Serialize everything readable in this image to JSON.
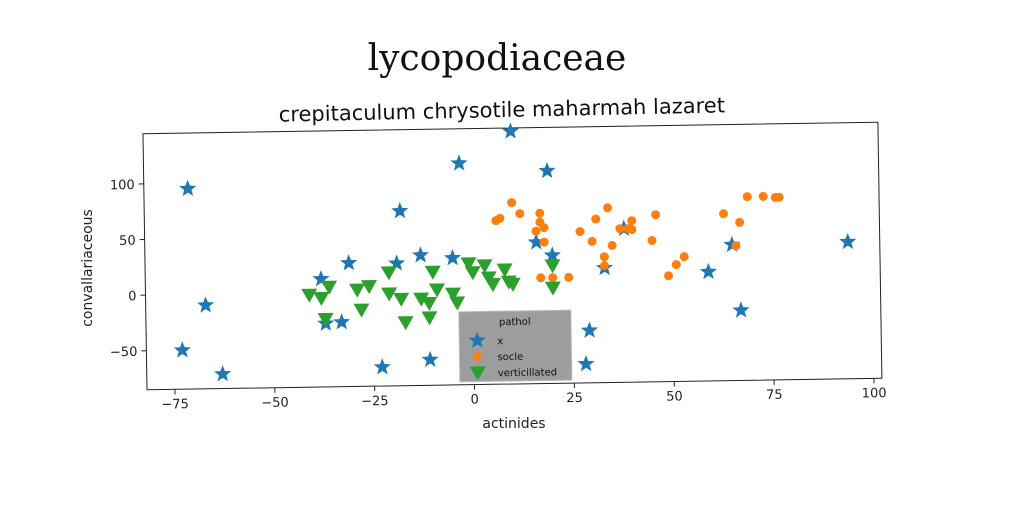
{
  "chart_data": {
    "type": "scatter",
    "title": "lycopodiaceae",
    "subtitle": "crepitaculum chrysotile maharmah lazaret",
    "xlabel": "actinides",
    "ylabel": "convallariaceous",
    "xlim": [
      -82,
      102
    ],
    "ylim": [
      -85,
      145
    ],
    "xticks": [
      -75,
      -50,
      -25,
      0,
      25,
      50,
      75,
      100
    ],
    "xtick_labels": [
      "−75",
      "−50",
      "−25",
      "0",
      "25",
      "50",
      "75",
      "100"
    ],
    "yticks": [
      -50,
      0,
      50,
      100
    ],
    "ytick_labels": [
      "−50",
      "0",
      "50",
      "100"
    ],
    "grid": false,
    "legend_position": "lower-center",
    "legend_title": "pathol",
    "series": [
      {
        "name": "x",
        "marker": "star",
        "color": "#1f77b4",
        "points": [
          [
            -71,
            95
          ],
          [
            -67,
            -10
          ],
          [
            -73,
            -50
          ],
          [
            -63,
            -72
          ],
          [
            -38,
            12
          ],
          [
            -37,
            -28
          ],
          [
            -33,
            -27
          ],
          [
            -31,
            26
          ],
          [
            -23,
            -68
          ],
          [
            -19,
            25
          ],
          [
            -18,
            72
          ],
          [
            -13,
            32
          ],
          [
            -11,
            -62
          ],
          [
            -5,
            29
          ],
          [
            -3,
            114
          ],
          [
            10,
            142
          ],
          [
            16,
            42
          ],
          [
            19,
            106
          ],
          [
            20,
            30
          ],
          [
            29,
            -38
          ],
          [
            28,
            -68
          ],
          [
            33,
            18
          ],
          [
            38,
            53
          ],
          [
            59,
            13
          ],
          [
            65,
            37
          ],
          [
            67,
            -22
          ],
          [
            94,
            38
          ]
        ]
      },
      {
        "name": "socle",
        "marker": "circle",
        "color": "#ff7f0e",
        "points": [
          [
            6,
            62
          ],
          [
            7,
            64
          ],
          [
            10,
            78
          ],
          [
            12,
            68
          ],
          [
            16,
            52
          ],
          [
            17,
            60
          ],
          [
            17,
            68
          ],
          [
            18,
            55
          ],
          [
            18,
            42
          ],
          [
            17,
            10
          ],
          [
            20,
            10
          ],
          [
            24,
            10
          ],
          [
            27,
            51
          ],
          [
            30,
            42
          ],
          [
            31,
            62
          ],
          [
            33,
            28
          ],
          [
            33,
            20
          ],
          [
            34,
            72
          ],
          [
            35,
            38
          ],
          [
            37,
            53
          ],
          [
            39,
            53
          ],
          [
            40,
            60
          ],
          [
            40,
            52
          ],
          [
            45,
            42
          ],
          [
            46,
            65
          ],
          [
            49,
            10
          ],
          [
            51,
            20
          ],
          [
            53,
            27
          ],
          [
            63,
            65
          ],
          [
            66,
            36
          ],
          [
            67,
            57
          ],
          [
            69,
            80
          ],
          [
            73,
            80
          ],
          [
            76,
            79
          ],
          [
            77,
            79
          ]
        ]
      },
      {
        "name": "verticillated",
        "marker": "triangle-down",
        "color": "#2ca02c",
        "points": [
          [
            -41,
            -2
          ],
          [
            -38,
            -5
          ],
          [
            -37,
            -24
          ],
          [
            -36,
            5
          ],
          [
            -29,
            2
          ],
          [
            -28,
            -16
          ],
          [
            -26,
            5
          ],
          [
            -21,
            17
          ],
          [
            -21,
            -2
          ],
          [
            -18,
            -7
          ],
          [
            -17,
            -28
          ],
          [
            -13,
            -7
          ],
          [
            -11,
            -11
          ],
          [
            -11,
            -24
          ],
          [
            -10,
            17
          ],
          [
            -9,
            1
          ],
          [
            -5,
            -3
          ],
          [
            -4,
            -11
          ],
          [
            -1,
            24
          ],
          [
            0,
            16
          ],
          [
            3,
            22
          ],
          [
            4,
            11
          ],
          [
            5,
            5
          ],
          [
            8,
            18
          ],
          [
            9,
            7
          ],
          [
            10,
            5
          ],
          [
            20,
            21
          ],
          [
            20,
            1
          ]
        ]
      }
    ]
  }
}
